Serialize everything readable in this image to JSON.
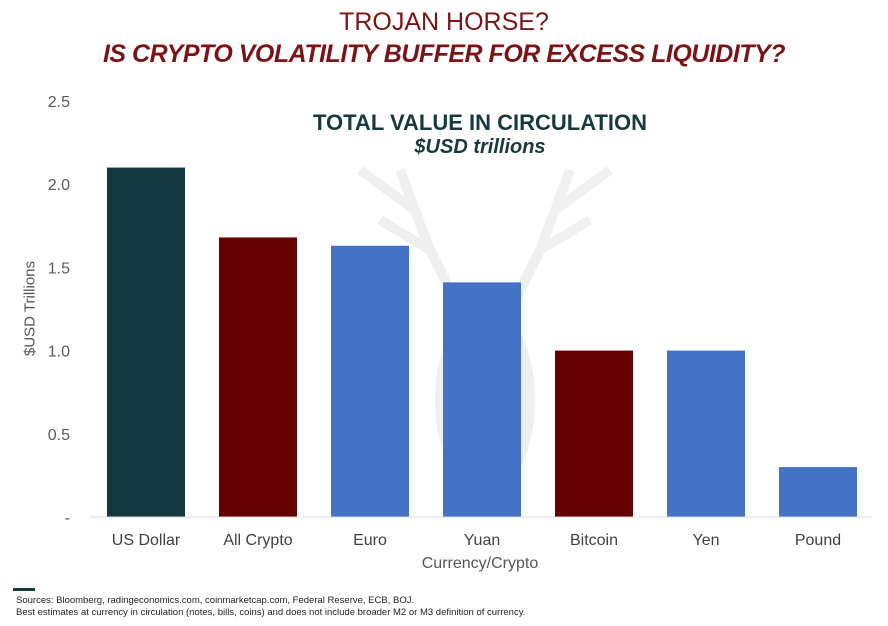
{
  "header": {
    "title_line1": "TROJAN HORSE?",
    "title_line2": "IS CRYPTO VOLATILITY BUFFER FOR EXCESS LIQUIDITY?"
  },
  "chart_data": {
    "type": "bar",
    "title": "TOTAL VALUE IN CIRCULATION",
    "subtitle": "$USD  trillions",
    "xlabel": "Currency/Crypto",
    "ylabel": "$USD Trillions",
    "ylim": [
      0,
      2.5
    ],
    "yticks": [
      0,
      0.5,
      1.0,
      1.5,
      2.0,
      2.5
    ],
    "ytick_labels": [
      "-",
      "0.5",
      "1.0",
      "1.5",
      "2.0",
      "2.5"
    ],
    "grid": false,
    "categories": [
      "US Dollar",
      "All Crypto",
      "Euro",
      "Yuan",
      "Bitcoin",
      "Yen",
      "Pound"
    ],
    "values": [
      2.1,
      1.68,
      1.63,
      1.41,
      1.0,
      1.0,
      0.3
    ],
    "colors": [
      "#143840",
      "#650000",
      "#4472C4",
      "#4472C4",
      "#650000",
      "#4472C4",
      "#4472C4"
    ]
  },
  "footer": {
    "sources": "Sources: Bloomberg, radingeconomics.com, coinmarketcap.com,  Federal Reserve,  ECB, BOJ.",
    "note": "Best estimates  at currency in circulation  (notes, bills, coins) and does not include broader M2 or M3 definition  of currency."
  }
}
